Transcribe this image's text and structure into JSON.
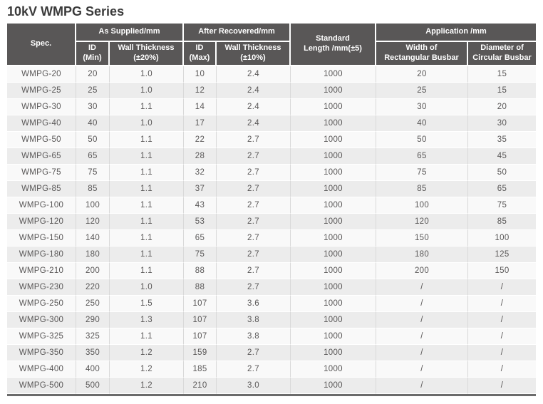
{
  "title": "10kV WMPG Series",
  "colors": {
    "header_bg": "#595757",
    "header_text": "#ffffff",
    "row_odd": "#f9f9f9",
    "row_even": "#ececec",
    "body_text": "#595757",
    "title_color": "#3b3b3b"
  },
  "table": {
    "header": {
      "spec": "Spec.",
      "as_supplied": "As Supplied/mm",
      "after_recovered": "After Recovered/mm",
      "id_min": "ID\n(Min)",
      "wall_thickness_20": "Wall Thickness\n(±20%)",
      "id_max": "ID\n(Max)",
      "wall_thickness_10": "Wall Thickness\n(±10%)",
      "standard_length": "Standard\nLength /mm(±5)",
      "application": "Application /mm",
      "width_rect": "Width of\nRectangular Busbar",
      "diameter_circ": "Diameter of\nCircular Busbar"
    },
    "column_keys": [
      "spec-cell",
      "id-min-cell",
      "wall-thickness-20-cell",
      "id-max-cell",
      "wall-thickness-10-cell",
      "standard-length-cell",
      "width-rectangular-busbar-cell",
      "diameter-circular-busbar-cell"
    ],
    "rows": [
      [
        "WMPG-20",
        "20",
        "1.0",
        "10",
        "2.4",
        "1000",
        "20",
        "15"
      ],
      [
        "WMPG-25",
        "25",
        "1.0",
        "12",
        "2.4",
        "1000",
        "25",
        "15"
      ],
      [
        "WMPG-30",
        "30",
        "1.1",
        "14",
        "2.4",
        "1000",
        "30",
        "20"
      ],
      [
        "WMPG-40",
        "40",
        "1.0",
        "17",
        "2.4",
        "1000",
        "40",
        "30"
      ],
      [
        "WMPG-50",
        "50",
        "1.1",
        "22",
        "2.7",
        "1000",
        "50",
        "35"
      ],
      [
        "WMPG-65",
        "65",
        "1.1",
        "28",
        "2.7",
        "1000",
        "65",
        "45"
      ],
      [
        "WMPG-75",
        "75",
        "1.1",
        "32",
        "2.7",
        "1000",
        "75",
        "50"
      ],
      [
        "WMPG-85",
        "85",
        "1.1",
        "37",
        "2.7",
        "1000",
        "85",
        "65"
      ],
      [
        "WMPG-100",
        "100",
        "1.1",
        "43",
        "2.7",
        "1000",
        "100",
        "75"
      ],
      [
        "WMPG-120",
        "120",
        "1.1",
        "53",
        "2.7",
        "1000",
        "120",
        "85"
      ],
      [
        "WMPG-150",
        "140",
        "1.1",
        "65",
        "2.7",
        "1000",
        "150",
        "100"
      ],
      [
        "WMPG-180",
        "180",
        "1.1",
        "75",
        "2.7",
        "1000",
        "180",
        "125"
      ],
      [
        "WMPG-210",
        "200",
        "1.1",
        "88",
        "2.7",
        "1000",
        "200",
        "150"
      ],
      [
        "WMPG-230",
        "220",
        "1.0",
        "88",
        "2.7",
        "1000",
        "/",
        "/"
      ],
      [
        "WMPG-250",
        "250",
        "1.5",
        "107",
        "3.6",
        "1000",
        "/",
        "/"
      ],
      [
        "WMPG-300",
        "290",
        "1.3",
        "107",
        "3.8",
        "1000",
        "/",
        "/"
      ],
      [
        "WMPG-325",
        "325",
        "1.1",
        "107",
        "3.8",
        "1000",
        "/",
        "/"
      ],
      [
        "WMPG-350",
        "350",
        "1.2",
        "159",
        "2.7",
        "1000",
        "/",
        "/"
      ],
      [
        "WMPG-400",
        "400",
        "1.2",
        "185",
        "2.7",
        "1000",
        "/",
        "/"
      ],
      [
        "WMPG-500",
        "500",
        "1.2",
        "210",
        "3.0",
        "1000",
        "/",
        "/"
      ]
    ]
  }
}
